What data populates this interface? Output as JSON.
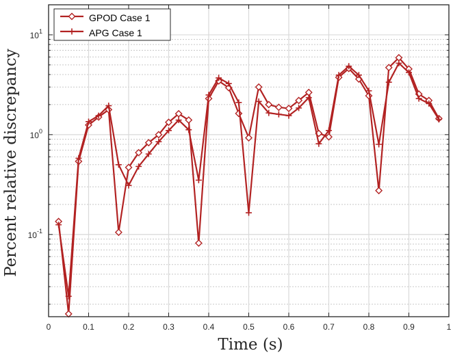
{
  "chart_data": {
    "type": "line",
    "xlabel": "Time (s)",
    "ylabel": "Percent relative discrepancy",
    "xlim": [
      0,
      1
    ],
    "ylim": [
      0.015,
      20
    ],
    "yscale": "log",
    "grid": true,
    "legend_position": "top-left",
    "color": "#b22222",
    "xticks": [
      0,
      0.1,
      0.2,
      0.3,
      0.4,
      0.5,
      0.6,
      0.7,
      0.8,
      0.9,
      1
    ],
    "xtick_labels": [
      "0",
      "0.1",
      "0.2",
      "0.3",
      "0.4",
      "0.5",
      "0.6",
      "0.7",
      "0.8",
      "0.9",
      "1"
    ],
    "yticks": [
      {
        "value": 0.1,
        "base": "10",
        "exp": "-1"
      },
      {
        "value": 1,
        "base": "10",
        "exp": "0"
      },
      {
        "value": 10,
        "base": "10",
        "exp": "1"
      }
    ],
    "series": [
      {
        "name": "GPOD Case 1",
        "marker": "diamond",
        "x": [
          0.025,
          0.05,
          0.075,
          0.1,
          0.125,
          0.15,
          0.175,
          0.2,
          0.225,
          0.25,
          0.275,
          0.3,
          0.325,
          0.35,
          0.375,
          0.4,
          0.425,
          0.45,
          0.475,
          0.5,
          0.525,
          0.55,
          0.575,
          0.6,
          0.625,
          0.65,
          0.675,
          0.7,
          0.725,
          0.75,
          0.775,
          0.8,
          0.825,
          0.85,
          0.875,
          0.9,
          0.925,
          0.95,
          0.975
        ],
        "values": [
          0.135,
          0.016,
          0.54,
          1.25,
          1.5,
          1.78,
          0.105,
          0.47,
          0.66,
          0.83,
          1.0,
          1.33,
          1.62,
          1.4,
          0.082,
          2.3,
          3.45,
          2.95,
          1.63,
          0.93,
          3.0,
          2.0,
          1.88,
          1.83,
          2.2,
          2.65,
          1.03,
          0.95,
          3.75,
          4.6,
          3.6,
          2.45,
          0.275,
          4.7,
          5.9,
          4.55,
          2.55,
          2.2,
          1.45
        ]
      },
      {
        "name": "APG Case 1",
        "marker": "plus",
        "x": [
          0.025,
          0.05,
          0.075,
          0.1,
          0.125,
          0.15,
          0.175,
          0.2,
          0.225,
          0.25,
          0.275,
          0.3,
          0.325,
          0.35,
          0.375,
          0.4,
          0.425,
          0.45,
          0.475,
          0.5,
          0.525,
          0.55,
          0.575,
          0.6,
          0.625,
          0.65,
          0.675,
          0.7,
          0.725,
          0.75,
          0.775,
          0.8,
          0.825,
          0.85,
          0.875,
          0.9,
          0.925,
          0.95,
          0.975
        ],
        "values": [
          0.125,
          0.024,
          0.58,
          1.35,
          1.55,
          1.95,
          0.5,
          0.31,
          0.48,
          0.64,
          0.85,
          1.1,
          1.4,
          1.12,
          0.35,
          2.5,
          3.7,
          3.25,
          2.1,
          0.165,
          2.15,
          1.65,
          1.6,
          1.55,
          1.85,
          2.35,
          0.81,
          1.1,
          3.95,
          4.85,
          3.95,
          2.75,
          0.8,
          3.35,
          5.2,
          4.2,
          2.3,
          2.05,
          1.42
        ]
      }
    ]
  }
}
